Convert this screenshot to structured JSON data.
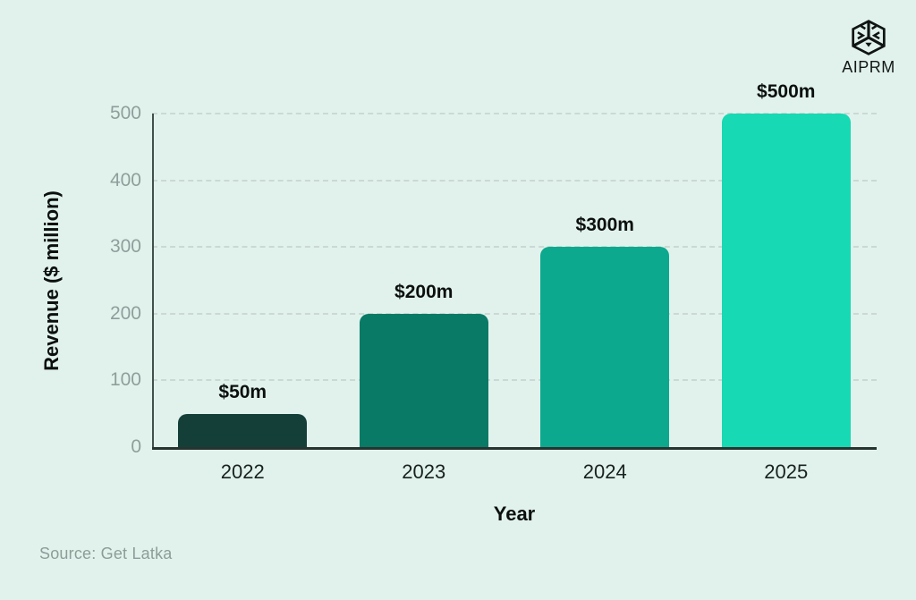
{
  "logo": {
    "text": "AIPRM",
    "icon": "aiprm-cube-icon"
  },
  "source": "Source: Get Latka",
  "colors": {
    "background": "#e1f2ed",
    "grid": "#c8d4d0",
    "y_axis_line": "#41504a",
    "x_axis_line": "#27332e",
    "y_tick_text": "#8f9e9a",
    "x_tick_text": "#18221e",
    "label_text": "#0b100e",
    "source_text": "#8d9c98"
  },
  "chart_data": {
    "type": "bar",
    "title": "",
    "categories": [
      "2022",
      "2023",
      "2024",
      "2025"
    ],
    "values": [
      50,
      200,
      300,
      500
    ],
    "value_labels": [
      "$50m",
      "$200m",
      "$300m",
      "$500m"
    ],
    "bar_colors": [
      "#143f39",
      "#087a66",
      "#0ca98e",
      "#17d9b3"
    ],
    "xlabel": "Year",
    "ylabel": "Revenue ($ million)",
    "ylim": [
      0,
      500
    ],
    "yticks": [
      0,
      100,
      200,
      300,
      400,
      500
    ],
    "grid": "dashed-horizontal",
    "legend": "none"
  }
}
